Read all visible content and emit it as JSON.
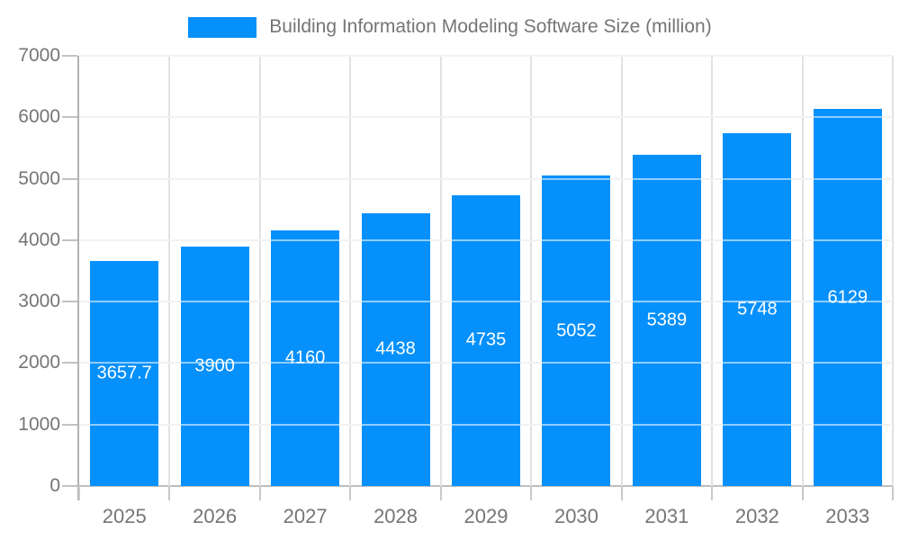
{
  "legend": {
    "label": "Building Information Modeling Software Size (million)"
  },
  "colors": {
    "bar": "#0590fb",
    "axis_line": "#b3b3b3",
    "gridline": "#e2e2e2",
    "tick": "#c2c2c2",
    "label_text": "#757575",
    "value_label_text": "#ffffff",
    "background": "#ffffff"
  },
  "chart_data": {
    "type": "bar",
    "title": "Building Information Modeling Software Size (million)",
    "categories": [
      "2025",
      "2026",
      "2027",
      "2028",
      "2029",
      "2030",
      "2031",
      "2032",
      "2033"
    ],
    "values": [
      3657.7,
      3900,
      4160,
      4438,
      4735,
      5052,
      5389,
      5748,
      6129
    ],
    "value_labels": [
      "3657.7",
      "3900",
      "4160",
      "4438",
      "4735",
      "5052",
      "5389",
      "5748",
      "6129"
    ],
    "series_name": "Building Information Modeling Software Size (million)",
    "xlabel": "",
    "ylabel": "",
    "ylim": [
      0,
      7000
    ],
    "yticks": [
      0,
      1000,
      2000,
      3000,
      4000,
      5000,
      6000,
      7000
    ],
    "grid": true,
    "legend_position": "top-center",
    "value_label_position": "bar-center"
  }
}
